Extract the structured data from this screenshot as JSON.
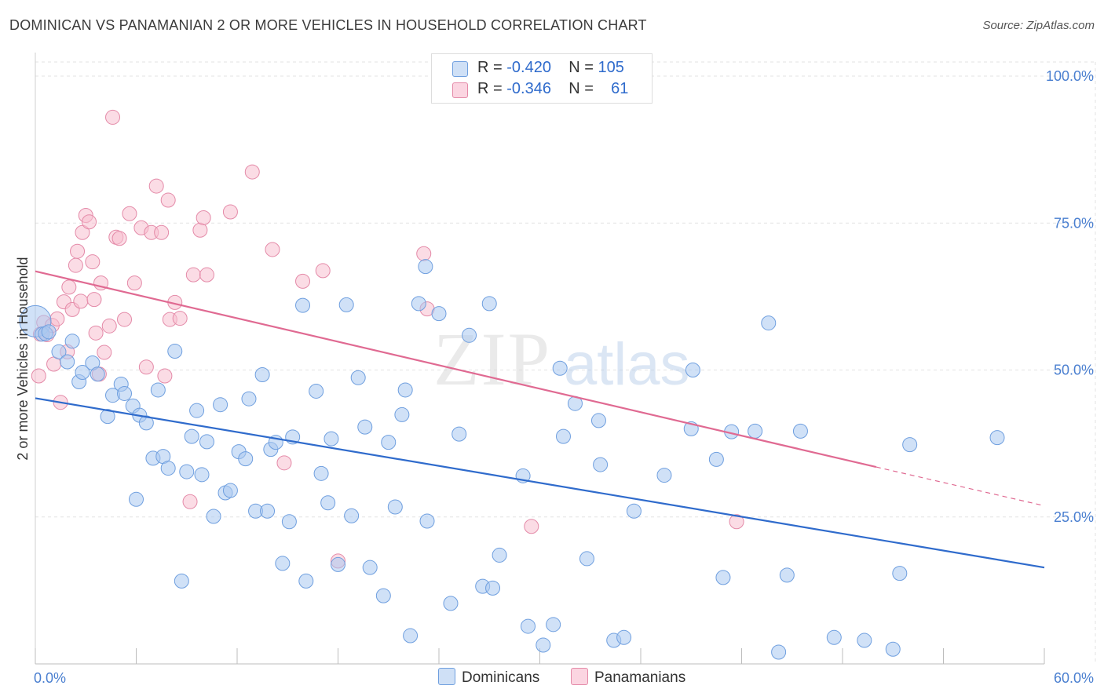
{
  "title": "DOMINICAN VS PANAMANIAN 2 OR MORE VEHICLES IN HOUSEHOLD CORRELATION CHART",
  "source": "Source: ZipAtlas.com",
  "watermark": {
    "zip": "ZIP",
    "atlas": "atlas"
  },
  "legend": {
    "rows": [
      {
        "r_label": "R =",
        "r_value": "-0.420",
        "n_label": "N =",
        "n_value": "105",
        "color": "#a9c8f0",
        "border": "#6f9fdf"
      },
      {
        "r_label": "R =",
        "r_value": "-0.346",
        "n_label": "N =",
        "n_value": "61",
        "color": "#f7bfd0",
        "border": "#e48aa8"
      }
    ]
  },
  "bottom_legend": [
    {
      "label": "Dominicans",
      "color": "#a9c8f0",
      "border": "#6f9fdf"
    },
    {
      "label": "Panamanians",
      "color": "#f7bfd0",
      "border": "#e48aa8"
    }
  ],
  "chart_data": {
    "type": "scatter",
    "title": "DOMINICAN VS PANAMANIAN 2 OR MORE VEHICLES IN HOUSEHOLD CORRELATION CHART",
    "xlabel": "",
    "ylabel": "2 or more Vehicles in Household",
    "xlim": [
      0,
      60
    ],
    "ylim": [
      0,
      100
    ],
    "x_tick_labels": [
      "0.0%",
      "60.0%"
    ],
    "y_tick_labels": [
      "100.0%",
      "75.0%",
      "50.0%",
      "25.0%"
    ],
    "y_ticks": [
      100,
      75,
      50,
      25
    ],
    "grid": true,
    "legend_position": "top-center",
    "series": [
      {
        "name": "Dominicans",
        "color": "#a9c8f0",
        "stroke": "#6f9fdf",
        "trend": {
          "x0": 0,
          "y0": 45.2,
          "x1": 60,
          "y1": 16.4,
          "color": "#2f6bcc"
        },
        "points": [
          [
            0.0,
            58.3
          ],
          [
            0.4,
            56.1
          ],
          [
            0.6,
            56.2
          ],
          [
            0.8,
            56.5
          ],
          [
            1.4,
            53.1
          ],
          [
            2.2,
            54.9
          ],
          [
            1.9,
            51.4
          ],
          [
            2.6,
            48.0
          ],
          [
            2.8,
            49.6
          ],
          [
            3.4,
            51.2
          ],
          [
            3.7,
            49.3
          ],
          [
            4.3,
            42.1
          ],
          [
            4.6,
            45.7
          ],
          [
            5.1,
            47.6
          ],
          [
            5.3,
            46.0
          ],
          [
            5.8,
            43.9
          ],
          [
            6.2,
            42.3
          ],
          [
            6.6,
            41.0
          ],
          [
            7.0,
            35.0
          ],
          [
            6.0,
            28.0
          ],
          [
            7.6,
            35.3
          ],
          [
            7.3,
            46.6
          ],
          [
            7.9,
            33.3
          ],
          [
            8.3,
            53.2
          ],
          [
            9.0,
            32.7
          ],
          [
            8.7,
            14.1
          ],
          [
            9.3,
            38.7
          ],
          [
            9.6,
            43.1
          ],
          [
            9.9,
            32.2
          ],
          [
            10.2,
            37.8
          ],
          [
            10.6,
            25.1
          ],
          [
            11.0,
            44.1
          ],
          [
            11.3,
            29.1
          ],
          [
            11.6,
            29.5
          ],
          [
            12.1,
            36.1
          ],
          [
            12.5,
            34.9
          ],
          [
            12.7,
            45.1
          ],
          [
            13.1,
            26.0
          ],
          [
            13.5,
            49.2
          ],
          [
            13.8,
            26.0
          ],
          [
            14.0,
            36.5
          ],
          [
            14.3,
            37.7
          ],
          [
            14.7,
            17.1
          ],
          [
            15.1,
            24.2
          ],
          [
            15.3,
            38.6
          ],
          [
            15.9,
            61.0
          ],
          [
            16.1,
            14.1
          ],
          [
            16.7,
            46.4
          ],
          [
            17.0,
            32.4
          ],
          [
            17.4,
            27.4
          ],
          [
            17.6,
            38.3
          ],
          [
            18.0,
            16.9
          ],
          [
            18.5,
            61.1
          ],
          [
            18.8,
            25.2
          ],
          [
            19.2,
            48.7
          ],
          [
            19.6,
            40.3
          ],
          [
            19.9,
            16.4
          ],
          [
            20.7,
            11.6
          ],
          [
            21.0,
            37.7
          ],
          [
            21.4,
            26.7
          ],
          [
            21.8,
            42.4
          ],
          [
            22.0,
            46.6
          ],
          [
            22.3,
            4.8
          ],
          [
            22.8,
            61.3
          ],
          [
            23.2,
            67.6
          ],
          [
            23.3,
            24.3
          ],
          [
            24.0,
            59.6
          ],
          [
            24.7,
            10.3
          ],
          [
            25.2,
            39.1
          ],
          [
            25.8,
            55.9
          ],
          [
            26.6,
            13.2
          ],
          [
            27.0,
            61.3
          ],
          [
            27.2,
            12.9
          ],
          [
            27.6,
            18.5
          ],
          [
            29.0,
            32.0
          ],
          [
            29.3,
            6.4
          ],
          [
            30.2,
            3.2
          ],
          [
            30.8,
            6.7
          ],
          [
            31.2,
            50.3
          ],
          [
            31.4,
            38.7
          ],
          [
            32.1,
            44.3
          ],
          [
            32.8,
            17.9
          ],
          [
            33.5,
            41.4
          ],
          [
            33.6,
            33.9
          ],
          [
            34.4,
            4.0
          ],
          [
            35.0,
            4.5
          ],
          [
            35.6,
            26.0
          ],
          [
            37.4,
            32.1
          ],
          [
            39.0,
            40.0
          ],
          [
            39.1,
            50.0
          ],
          [
            40.5,
            34.8
          ],
          [
            40.9,
            14.7
          ],
          [
            41.4,
            39.5
          ],
          [
            42.8,
            39.6
          ],
          [
            43.6,
            58.0
          ],
          [
            44.2,
            2.0
          ],
          [
            44.7,
            15.1
          ],
          [
            45.5,
            39.6
          ],
          [
            47.5,
            4.5
          ],
          [
            49.3,
            4.0
          ],
          [
            51.0,
            2.5
          ],
          [
            51.4,
            15.4
          ],
          [
            52.0,
            37.3
          ],
          [
            57.2,
            38.5
          ]
        ]
      },
      {
        "name": "Panamanians",
        "color": "#f7bfd0",
        "stroke": "#e48aa8",
        "trend": {
          "x0": 0,
          "y0": 66.8,
          "x1": 50.0,
          "y1": 33.5,
          "dashed_to_x": 60,
          "dashed_to_y": 26.9,
          "color": "#e06a92"
        },
        "points": [
          [
            0.2,
            49.0
          ],
          [
            0.3,
            56.1
          ],
          [
            0.5,
            58.1
          ],
          [
            0.7,
            56.0
          ],
          [
            1.0,
            57.6
          ],
          [
            1.1,
            51.0
          ],
          [
            1.3,
            58.7
          ],
          [
            1.5,
            44.5
          ],
          [
            1.7,
            61.6
          ],
          [
            1.9,
            53.1
          ],
          [
            2.0,
            64.1
          ],
          [
            2.2,
            60.3
          ],
          [
            2.4,
            67.8
          ],
          [
            2.5,
            70.2
          ],
          [
            2.7,
            61.7
          ],
          [
            2.8,
            73.4
          ],
          [
            3.0,
            76.3
          ],
          [
            3.2,
            75.2
          ],
          [
            3.4,
            68.4
          ],
          [
            3.5,
            62.0
          ],
          [
            3.6,
            56.3
          ],
          [
            3.8,
            49.3
          ],
          [
            3.9,
            64.8
          ],
          [
            4.1,
            53.0
          ],
          [
            4.4,
            57.5
          ],
          [
            4.6,
            93.0
          ],
          [
            4.8,
            72.6
          ],
          [
            5.0,
            72.4
          ],
          [
            5.3,
            58.6
          ],
          [
            5.6,
            76.6
          ],
          [
            5.9,
            64.8
          ],
          [
            6.3,
            74.2
          ],
          [
            6.6,
            50.5
          ],
          [
            6.9,
            73.4
          ],
          [
            7.2,
            81.3
          ],
          [
            7.5,
            73.4
          ],
          [
            7.7,
            49.0
          ],
          [
            7.9,
            78.9
          ],
          [
            8.0,
            58.6
          ],
          [
            8.3,
            61.5
          ],
          [
            8.6,
            58.8
          ],
          [
            9.2,
            27.6
          ],
          [
            9.4,
            66.2
          ],
          [
            9.8,
            73.8
          ],
          [
            10.0,
            75.9
          ],
          [
            10.2,
            66.2
          ],
          [
            11.6,
            76.9
          ],
          [
            12.9,
            83.7
          ],
          [
            14.1,
            70.5
          ],
          [
            14.8,
            34.2
          ],
          [
            15.9,
            65.1
          ],
          [
            17.1,
            66.9
          ],
          [
            18.0,
            17.5
          ],
          [
            23.1,
            69.8
          ],
          [
            23.3,
            60.4
          ],
          [
            29.5,
            23.4
          ],
          [
            41.7,
            24.2
          ]
        ]
      }
    ]
  }
}
